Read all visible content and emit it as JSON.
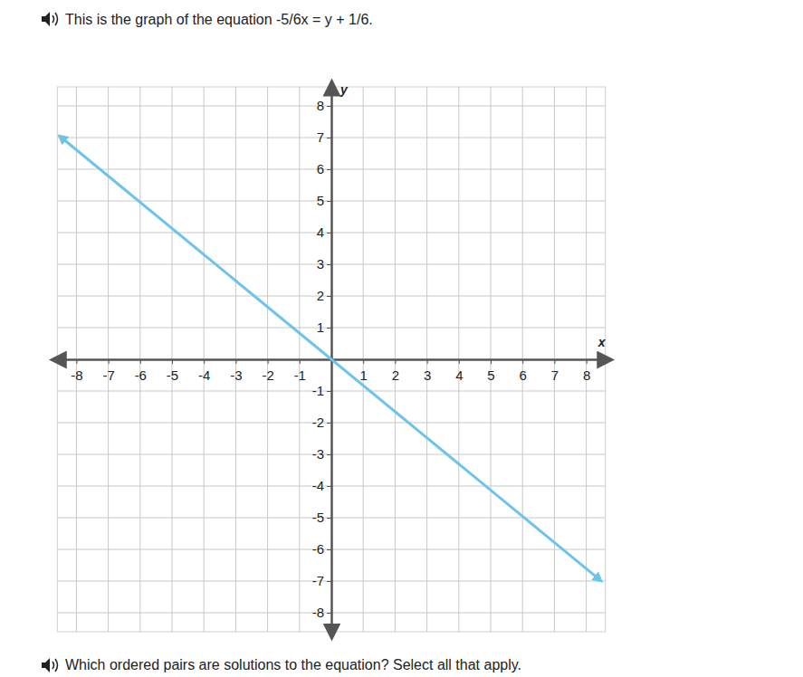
{
  "chart_data": {
    "type": "line",
    "title": "This is the graph of the equation -5/6x = y + 1/6.",
    "subtitle": "Which ordered pairs are solutions to the equation? Select all that apply.",
    "x_label": "x",
    "y_label": "y",
    "x": [
      -8.47,
      8.4
    ],
    "values": [
      7.0,
      -6.94
    ],
    "color": "#6ec3e8",
    "xlim": [
      -8.6,
      8.6
    ],
    "ylim": [
      -8.6,
      8.6
    ],
    "xticks": [
      -8,
      -7,
      -6,
      -5,
      -4,
      -3,
      -2,
      -1,
      1,
      2,
      3,
      4,
      5,
      6,
      7,
      8
    ],
    "yticks": [
      -8,
      -7,
      -6,
      -5,
      -4,
      -3,
      -2,
      -1,
      1,
      2,
      3,
      4,
      5,
      6,
      7,
      8
    ],
    "grid": true
  }
}
